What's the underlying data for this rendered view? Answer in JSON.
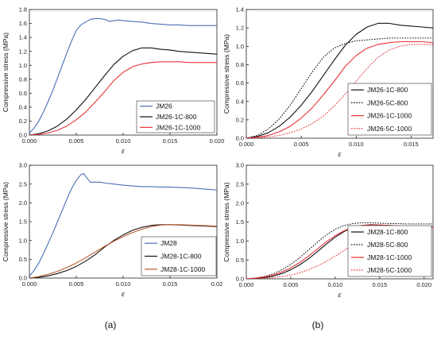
{
  "colors": {
    "blue": "#4a6fb5",
    "black": "#111111",
    "red": "#e8333a",
    "brown": "#b8582a",
    "red_dotted": "#e8333a"
  },
  "panel_labels": [
    "(a)",
    "(b)"
  ],
  "chart_data": [
    {
      "id": "top-left",
      "type": "line",
      "xlabel": "ε",
      "ylabel": "Compressive stress (MPa)",
      "xlim": [
        0,
        0.02
      ],
      "ylim": [
        0,
        1.8
      ],
      "xticks": [
        0,
        0.005,
        0.01,
        0.015,
        0.02
      ],
      "xtick_labels": [
        "0.000",
        "0.005",
        "0.010",
        "0.015",
        "0.020"
      ],
      "yticks": [
        0,
        0.2,
        0.4,
        0.6,
        0.8,
        1.0,
        1.2,
        1.4,
        1.6,
        1.8
      ],
      "ytick_labels": [
        "0.0",
        "0.2",
        "0.4",
        "0.6",
        "0.8",
        "1.0",
        "1.2",
        "1.4",
        "1.6",
        "1.8"
      ],
      "grid": false,
      "legend": "bottom-right",
      "series": [
        {
          "name": "JM26",
          "color": "blue",
          "dash": "solid",
          "x": [
            0,
            0.0005,
            0.001,
            0.0015,
            0.002,
            0.0025,
            0.003,
            0.0035,
            0.004,
            0.0045,
            0.005,
            0.0055,
            0.006,
            0.0065,
            0.007,
            0.0075,
            0.008,
            0.0085,
            0.009,
            0.0095,
            0.01,
            0.011,
            0.012,
            0.013,
            0.014,
            0.015,
            0.016,
            0.017,
            0.018,
            0.019,
            0.02
          ],
          "y": [
            0.03,
            0.1,
            0.2,
            0.33,
            0.48,
            0.64,
            0.82,
            1.0,
            1.18,
            1.35,
            1.5,
            1.58,
            1.62,
            1.66,
            1.67,
            1.67,
            1.66,
            1.63,
            1.64,
            1.65,
            1.64,
            1.63,
            1.62,
            1.6,
            1.59,
            1.58,
            1.58,
            1.57,
            1.57,
            1.57,
            1.57
          ]
        },
        {
          "name": "JM26-1C-800",
          "color": "black",
          "dash": "solid",
          "x": [
            0,
            0.001,
            0.002,
            0.003,
            0.004,
            0.005,
            0.006,
            0.007,
            0.008,
            0.009,
            0.01,
            0.011,
            0.012,
            0.0125,
            0.013,
            0.014,
            0.015,
            0.016,
            0.017,
            0.018,
            0.019,
            0.02
          ],
          "y": [
            0,
            0.02,
            0.06,
            0.13,
            0.23,
            0.36,
            0.51,
            0.68,
            0.85,
            1.01,
            1.13,
            1.21,
            1.25,
            1.25,
            1.25,
            1.23,
            1.22,
            1.2,
            1.19,
            1.18,
            1.17,
            1.16
          ]
        },
        {
          "name": "JM26-1C-1000",
          "color": "red",
          "dash": "solid",
          "x": [
            0,
            0.001,
            0.002,
            0.003,
            0.004,
            0.005,
            0.006,
            0.007,
            0.008,
            0.009,
            0.01,
            0.011,
            0.012,
            0.013,
            0.014,
            0.015,
            0.016,
            0.017,
            0.018,
            0.019,
            0.02
          ],
          "y": [
            0,
            0.01,
            0.03,
            0.07,
            0.13,
            0.22,
            0.33,
            0.47,
            0.62,
            0.78,
            0.9,
            0.98,
            1.02,
            1.04,
            1.05,
            1.05,
            1.05,
            1.04,
            1.04,
            1.04,
            1.04
          ]
        }
      ]
    },
    {
      "id": "top-right",
      "type": "line",
      "xlabel": "ε",
      "ylabel": "Compressive stress (MPa)",
      "xlim": [
        0,
        0.017
      ],
      "ylim": [
        0,
        1.4
      ],
      "xticks": [
        0,
        0.005,
        0.01,
        0.015
      ],
      "xtick_labels": [
        "0.000",
        "0.005",
        "0.010",
        "0.015"
      ],
      "yticks": [
        0,
        0.2,
        0.4,
        0.6,
        0.8,
        1.0,
        1.2,
        1.4
      ],
      "ytick_labels": [
        "0.0",
        "0.2",
        "0.4",
        "0.6",
        "0.8",
        "1.0",
        "1.2",
        "1.4"
      ],
      "grid": false,
      "legend": "bottom-right",
      "series": [
        {
          "name": "JM26-1C-800",
          "color": "black",
          "dash": "solid",
          "x": [
            0,
            0.001,
            0.002,
            0.003,
            0.004,
            0.005,
            0.006,
            0.007,
            0.008,
            0.009,
            0.01,
            0.011,
            0.012,
            0.0125,
            0.013,
            0.014,
            0.015,
            0.016,
            0.017
          ],
          "y": [
            0,
            0.02,
            0.06,
            0.13,
            0.23,
            0.36,
            0.51,
            0.68,
            0.85,
            1.01,
            1.13,
            1.21,
            1.25,
            1.25,
            1.25,
            1.23,
            1.22,
            1.21,
            1.2
          ]
        },
        {
          "name": "JM26-5C-800",
          "color": "black",
          "dash": "dotted",
          "x": [
            0,
            0.001,
            0.002,
            0.003,
            0.004,
            0.005,
            0.006,
            0.007,
            0.008,
            0.009,
            0.01,
            0.011,
            0.012,
            0.013,
            0.014,
            0.015,
            0.016,
            0.017
          ],
          "y": [
            0,
            0.03,
            0.1,
            0.21,
            0.36,
            0.54,
            0.72,
            0.88,
            0.98,
            1.03,
            1.06,
            1.07,
            1.08,
            1.09,
            1.09,
            1.09,
            1.09,
            1.09
          ]
        },
        {
          "name": "JM26-1C-1000",
          "color": "red",
          "dash": "solid",
          "x": [
            0,
            0.001,
            0.002,
            0.003,
            0.004,
            0.005,
            0.006,
            0.007,
            0.008,
            0.009,
            0.01,
            0.011,
            0.012,
            0.013,
            0.014,
            0.015,
            0.016,
            0.017
          ],
          "y": [
            0,
            0.01,
            0.03,
            0.07,
            0.13,
            0.22,
            0.33,
            0.47,
            0.62,
            0.78,
            0.9,
            0.98,
            1.02,
            1.04,
            1.05,
            1.05,
            1.05,
            1.04
          ]
        },
        {
          "name": "JM26-5C-1000",
          "color": "red",
          "dash": "dotted",
          "x": [
            0,
            0.001,
            0.002,
            0.003,
            0.004,
            0.005,
            0.006,
            0.007,
            0.008,
            0.009,
            0.01,
            0.011,
            0.012,
            0.013,
            0.014,
            0.015,
            0.016,
            0.017
          ],
          "y": [
            0,
            0.005,
            0.015,
            0.03,
            0.06,
            0.1,
            0.16,
            0.24,
            0.35,
            0.48,
            0.62,
            0.76,
            0.88,
            0.96,
            1.0,
            1.02,
            1.02,
            1.02
          ]
        }
      ]
    },
    {
      "id": "bottom-left",
      "type": "line",
      "xlabel": "ε",
      "ylabel": "Compressive stress (MPa)",
      "xlim": [
        0,
        0.02
      ],
      "ylim": [
        0,
        3.0
      ],
      "xticks": [
        0,
        0.005,
        0.01,
        0.015,
        0.02
      ],
      "xtick_labels": [
        "0.000",
        "0.005",
        "0.010",
        "0.015",
        "0.02"
      ],
      "yticks": [
        0,
        0.5,
        1.0,
        1.5,
        2.0,
        2.5,
        3.0
      ],
      "ytick_labels": [
        "0.0",
        "0.5",
        "1.0",
        "1.5",
        "2.0",
        "2.5",
        "3.0"
      ],
      "grid": false,
      "legend": "bottom-right",
      "series": [
        {
          "name": "JM28",
          "color": "blue",
          "dash": "solid",
          "x": [
            0,
            0.0005,
            0.001,
            0.0015,
            0.002,
            0.0025,
            0.003,
            0.0035,
            0.004,
            0.0045,
            0.005,
            0.0055,
            0.0058,
            0.006,
            0.0065,
            0.007,
            0.0075,
            0.008,
            0.009,
            0.01,
            0.011,
            0.012,
            0.013,
            0.014,
            0.015,
            0.016,
            0.017,
            0.018,
            0.019,
            0.02
          ],
          "y": [
            0.05,
            0.2,
            0.4,
            0.65,
            0.92,
            1.2,
            1.5,
            1.8,
            2.1,
            2.38,
            2.6,
            2.75,
            2.78,
            2.7,
            2.55,
            2.55,
            2.55,
            2.53,
            2.5,
            2.47,
            2.45,
            2.43,
            2.43,
            2.42,
            2.42,
            2.41,
            2.4,
            2.38,
            2.36,
            2.34
          ]
        },
        {
          "name": "JM28-1C-800",
          "color": "black",
          "dash": "solid",
          "x": [
            0,
            0.001,
            0.002,
            0.003,
            0.004,
            0.005,
            0.006,
            0.007,
            0.008,
            0.009,
            0.01,
            0.011,
            0.012,
            0.013,
            0.014,
            0.015,
            0.016,
            0.017,
            0.018,
            0.019,
            0.02
          ],
          "y": [
            0,
            0.02,
            0.06,
            0.12,
            0.2,
            0.31,
            0.45,
            0.62,
            0.82,
            1.0,
            1.15,
            1.27,
            1.35,
            1.4,
            1.42,
            1.42,
            1.41,
            1.4,
            1.39,
            1.38,
            1.37
          ]
        },
        {
          "name": "JM28-1C-1000",
          "color": "brown",
          "dash": "solid",
          "x": [
            0,
            0.001,
            0.002,
            0.003,
            0.004,
            0.005,
            0.006,
            0.007,
            0.008,
            0.009,
            0.01,
            0.011,
            0.012,
            0.013,
            0.014,
            0.015,
            0.016,
            0.017,
            0.018,
            0.019,
            0.02
          ],
          "y": [
            0,
            0.04,
            0.1,
            0.18,
            0.28,
            0.4,
            0.54,
            0.69,
            0.84,
            0.98,
            1.1,
            1.21,
            1.3,
            1.37,
            1.41,
            1.42,
            1.42,
            1.41,
            1.4,
            1.39,
            1.38
          ]
        }
      ]
    },
    {
      "id": "bottom-right",
      "type": "line",
      "xlabel": "ε",
      "ylabel": "Compressive stress (MPa)",
      "xlim": [
        0,
        0.021
      ],
      "ylim": [
        0,
        3.0
      ],
      "xticks": [
        0,
        0.005,
        0.01,
        0.015,
        0.02
      ],
      "xtick_labels": [
        "0.000",
        "0.005",
        "0.010",
        "0.015",
        "0.020"
      ],
      "yticks": [
        0,
        0.5,
        1.0,
        1.5,
        2.0,
        2.5,
        3.0
      ],
      "ytick_labels": [
        "0.0",
        "0.5",
        "1.0",
        "1.5",
        "2.0",
        "2.5",
        "3.0"
      ],
      "grid": false,
      "legend": "bottom-right",
      "series": [
        {
          "name": "JM28-1C-800",
          "color": "black",
          "dash": "solid",
          "x": [
            0,
            0.001,
            0.002,
            0.003,
            0.004,
            0.005,
            0.006,
            0.007,
            0.008,
            0.009,
            0.01,
            0.011,
            0.012,
            0.013,
            0.014,
            0.015,
            0.016,
            0.017,
            0.018,
            0.019,
            0.02,
            0.021
          ],
          "y": [
            0,
            0.01,
            0.03,
            0.07,
            0.14,
            0.24,
            0.37,
            0.53,
            0.72,
            0.92,
            1.1,
            1.25,
            1.35,
            1.41,
            1.43,
            1.42,
            1.41,
            1.4,
            1.39,
            1.38,
            1.37,
            1.36
          ]
        },
        {
          "name": "JM28-5C-800",
          "color": "black",
          "dash": "dotted",
          "x": [
            0,
            0.001,
            0.002,
            0.003,
            0.004,
            0.005,
            0.006,
            0.007,
            0.008,
            0.009,
            0.01,
            0.011,
            0.012,
            0.013,
            0.014,
            0.015,
            0.016,
            0.017,
            0.018,
            0.019,
            0.02,
            0.021
          ],
          "y": [
            0,
            0.02,
            0.06,
            0.13,
            0.24,
            0.38,
            0.56,
            0.76,
            0.97,
            1.16,
            1.31,
            1.41,
            1.46,
            1.48,
            1.48,
            1.47,
            1.46,
            1.46,
            1.45,
            1.45,
            1.45,
            1.45
          ]
        },
        {
          "name": "JM28-1C-1000",
          "color": "red",
          "dash": "solid",
          "x": [
            0,
            0.001,
            0.002,
            0.003,
            0.004,
            0.005,
            0.006,
            0.007,
            0.008,
            0.009,
            0.01,
            0.011,
            0.012,
            0.013,
            0.014,
            0.015,
            0.016,
            0.017,
            0.018,
            0.019,
            0.02,
            0.021
          ],
          "y": [
            0,
            0.02,
            0.05,
            0.1,
            0.18,
            0.29,
            0.43,
            0.6,
            0.79,
            0.98,
            1.14,
            1.27,
            1.36,
            1.41,
            1.42,
            1.42,
            1.41,
            1.4,
            1.39,
            1.38,
            1.37,
            1.36
          ]
        },
        {
          "name": "JM28-5C-1000",
          "color": "red",
          "dash": "dotted",
          "x": [
            0,
            0.001,
            0.002,
            0.003,
            0.004,
            0.005,
            0.006,
            0.007,
            0.008,
            0.009,
            0.01,
            0.011,
            0.012,
            0.013,
            0.014,
            0.015,
            0.016,
            0.017,
            0.018,
            0.019,
            0.02,
            0.021
          ],
          "y": [
            0,
            0.005,
            0.015,
            0.03,
            0.06,
            0.1,
            0.16,
            0.24,
            0.34,
            0.46,
            0.6,
            0.75,
            0.9,
            1.04,
            1.16,
            1.25,
            1.31,
            1.35,
            1.37,
            1.38,
            1.38,
            1.38
          ]
        }
      ]
    }
  ]
}
